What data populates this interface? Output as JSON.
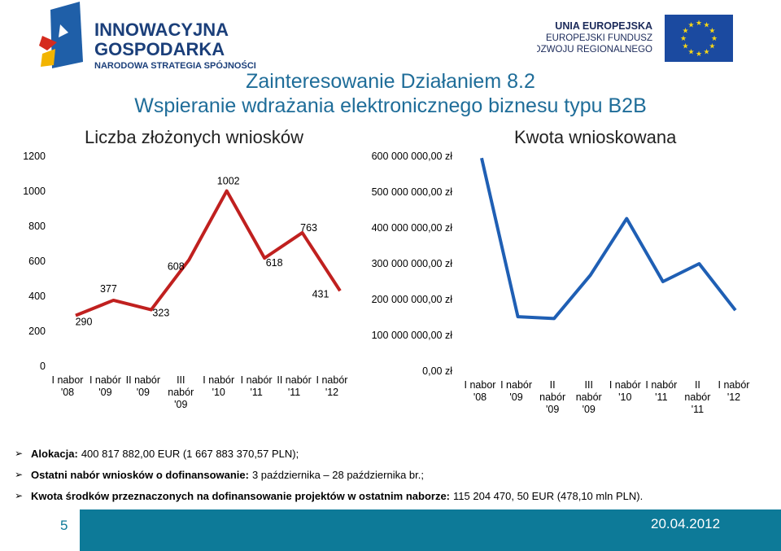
{
  "header": {
    "logo_left_line1": "INNOWACYJNA",
    "logo_left_line2": "GOSPODARKA",
    "logo_left_line3": "NARODOWA STRATEGIA SPÓJNOŚCI",
    "logo_right_line1": "UNIA EUROPEJSKA",
    "logo_right_line2": "EUROPEJSKI FUNDUSZ",
    "logo_right_line3": "ROZWOJU REGIONALNEGO",
    "title_line1": "Zainteresowanie Działaniem 8.2",
    "title_line2": "Wspieranie wdrażania elektronicznego biznesu typu B2B"
  },
  "chart_data": [
    {
      "type": "line",
      "title": "Liczba złożonych wniosków",
      "categories": [
        "I nabor '08",
        "I nabór '09",
        "II nabór '09",
        "III nabór '09",
        "I nabór '10",
        "I nabór '11",
        "II nabór '11",
        "I nabór '12"
      ],
      "values": [
        290,
        377,
        323,
        608,
        1002,
        618,
        763,
        431
      ],
      "data_labels": [
        "290",
        "377",
        "323",
        "608",
        "1002",
        "618",
        "763",
        "431"
      ],
      "yticks": [
        "0",
        "200",
        "400",
        "600",
        "800",
        "1000",
        "1200"
      ],
      "ylim": [
        0,
        1200
      ],
      "color": "#c0201f"
    },
    {
      "type": "line",
      "title": "Kwota wnioskowana",
      "categories": [
        "I nabor '08",
        "I nabór '09",
        "II nabór '09",
        "III nabór '09",
        "I nabór '10",
        "I nabór '11",
        "II nabór '11",
        "I nabór '12"
      ],
      "values": [
        595000000,
        152000000,
        147000000,
        268000000,
        426000000,
        250000000,
        300000000,
        170000000
      ],
      "yticks": [
        "0,00 zł",
        "100 000 000,00 zł",
        "200 000 000,00 zł",
        "300 000 000,00 zł",
        "400 000 000,00 zł",
        "500 000 000,00 zł",
        "600 000 000,00 zł"
      ],
      "ylim": [
        0,
        600000000
      ],
      "color": "#1f5fb4"
    }
  ],
  "bullets": [
    {
      "bold": "Alokacja:",
      "text": "400 817 882,00 EUR (1  667 883 370,57 PLN);"
    },
    {
      "bold": "Ostatni nabór wniosków o dofinansowanie:",
      "text": "3 października – 28 października br.;"
    },
    {
      "bold": "Kwota środków przeznaczonych na dofinansowanie projektów w ostatnim naborze:",
      "text": "115 204 470, 50 EUR (478,10 mln PLN)."
    }
  ],
  "footer": {
    "page": "5",
    "date": "20.04.2012"
  }
}
